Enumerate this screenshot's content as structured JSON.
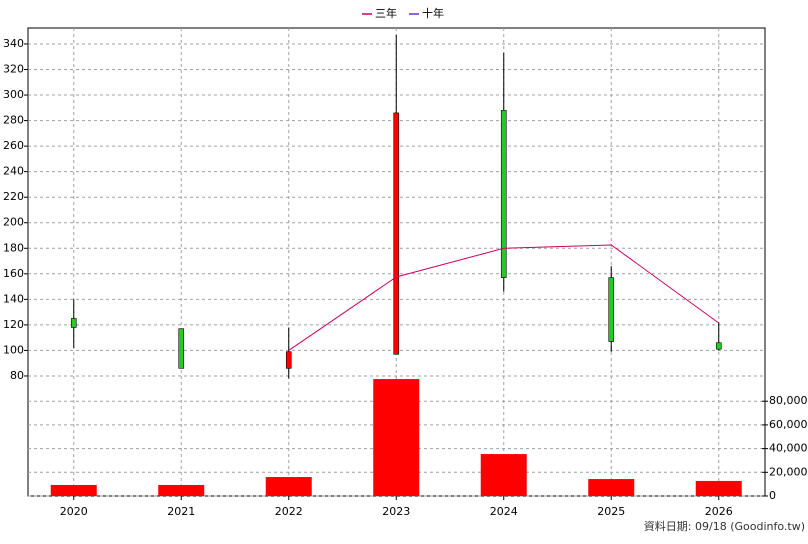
{
  "chart_data": {
    "type": "candlestick",
    "categories": [
      "2020",
      "2021",
      "2022",
      "2023",
      "2024",
      "2025",
      "2026"
    ],
    "open": [
      125,
      117,
      86,
      97,
      288,
      157,
      106
    ],
    "high": [
      140,
      117,
      118,
      347,
      333,
      166,
      122
    ],
    "low": [
      102,
      86,
      78,
      97,
      146,
      99,
      100
    ],
    "close": [
      118,
      86,
      99,
      286,
      157,
      107,
      101
    ],
    "up_color": "#ff0000",
    "down_color": "#22cc22",
    "ylim": [
      -14,
      352.5
    ],
    "yticks": [
      80,
      100,
      120,
      140,
      160,
      180,
      200,
      220,
      240,
      260,
      280,
      300,
      320,
      340
    ],
    "volume": {
      "values": [
        9300,
        9300,
        16000,
        98700,
        35400,
        14300,
        12700
      ],
      "color": "#ff0000",
      "axis": "y2"
    },
    "y2lim": [
      0,
      395000
    ],
    "y2ticks": [
      0,
      {
        "value": 20000,
        "label": "20,000"
      },
      {
        "value": 40000,
        "label": "40,000"
      },
      {
        "value": 60000,
        "label": "60,000"
      },
      {
        "value": 80000,
        "label": "80,000"
      }
    ],
    "series": [
      {
        "name": "三年",
        "color": "#cc0066",
        "values": [
          null,
          null,
          100,
          157.5,
          180,
          182.6,
          121.5
        ]
      },
      {
        "name": "十年",
        "color": "#6633cc",
        "values": [
          null,
          null,
          null,
          null,
          null,
          null,
          null
        ]
      }
    ],
    "grid": true,
    "footnote": "資料日期: 09/18  (Goodinfo.tw)"
  }
}
